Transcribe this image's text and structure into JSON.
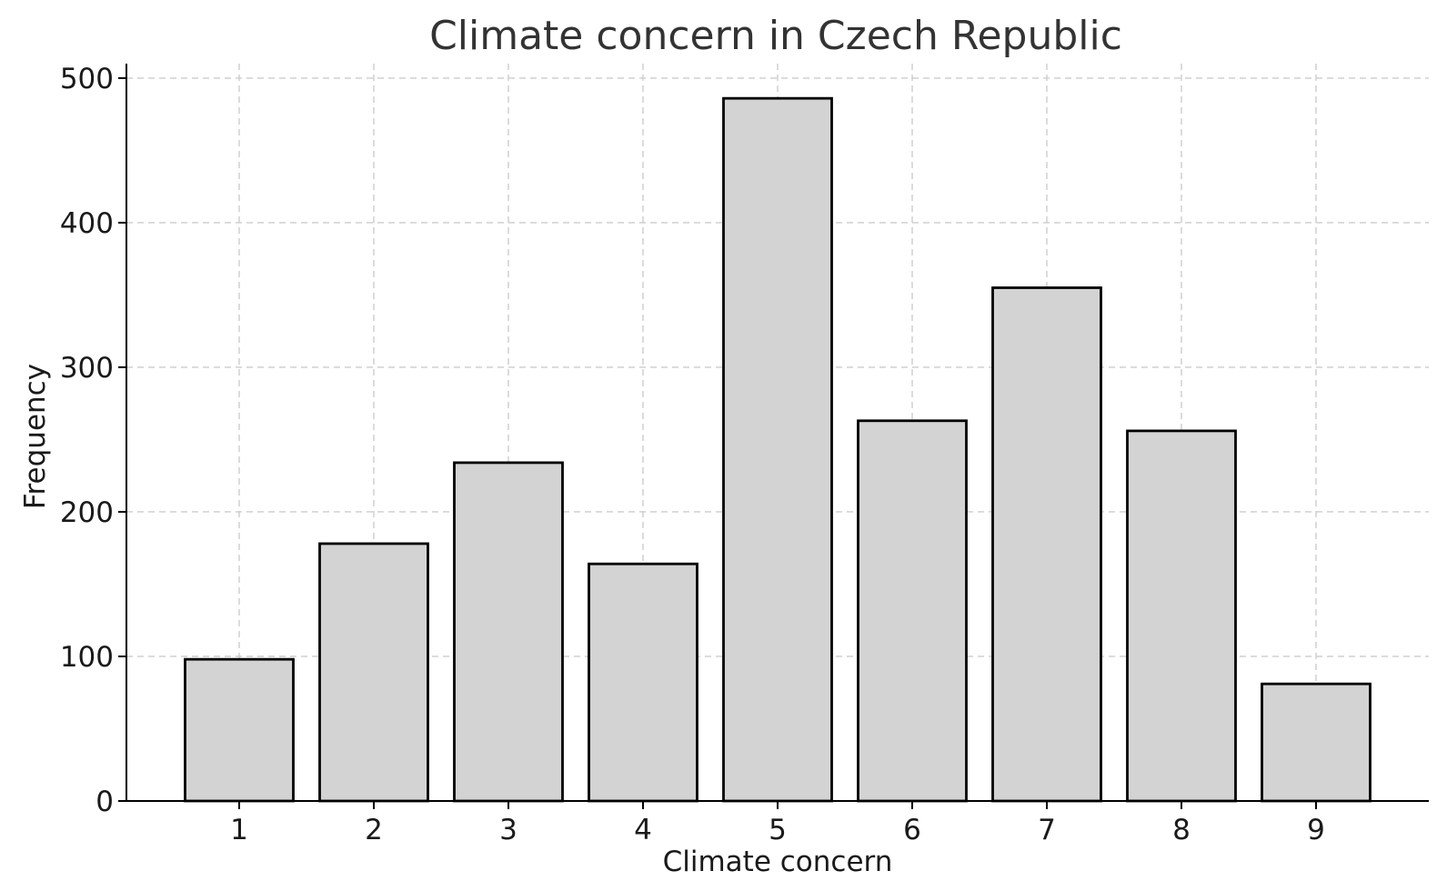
{
  "chart_data": {
    "type": "bar",
    "title": "Climate concern in Czech Republic",
    "xlabel": "Climate concern",
    "ylabel": "Frequency",
    "categories": [
      "1",
      "2",
      "3",
      "4",
      "5",
      "6",
      "7",
      "8",
      "9"
    ],
    "values": [
      98,
      178,
      234,
      164,
      486,
      263,
      355,
      256,
      81
    ],
    "ylim": [
      0,
      510
    ],
    "yticks": [
      0,
      100,
      200,
      300,
      400,
      500
    ],
    "grid": true,
    "bar_color": "#d3d3d3",
    "edge_color": "#000000"
  }
}
